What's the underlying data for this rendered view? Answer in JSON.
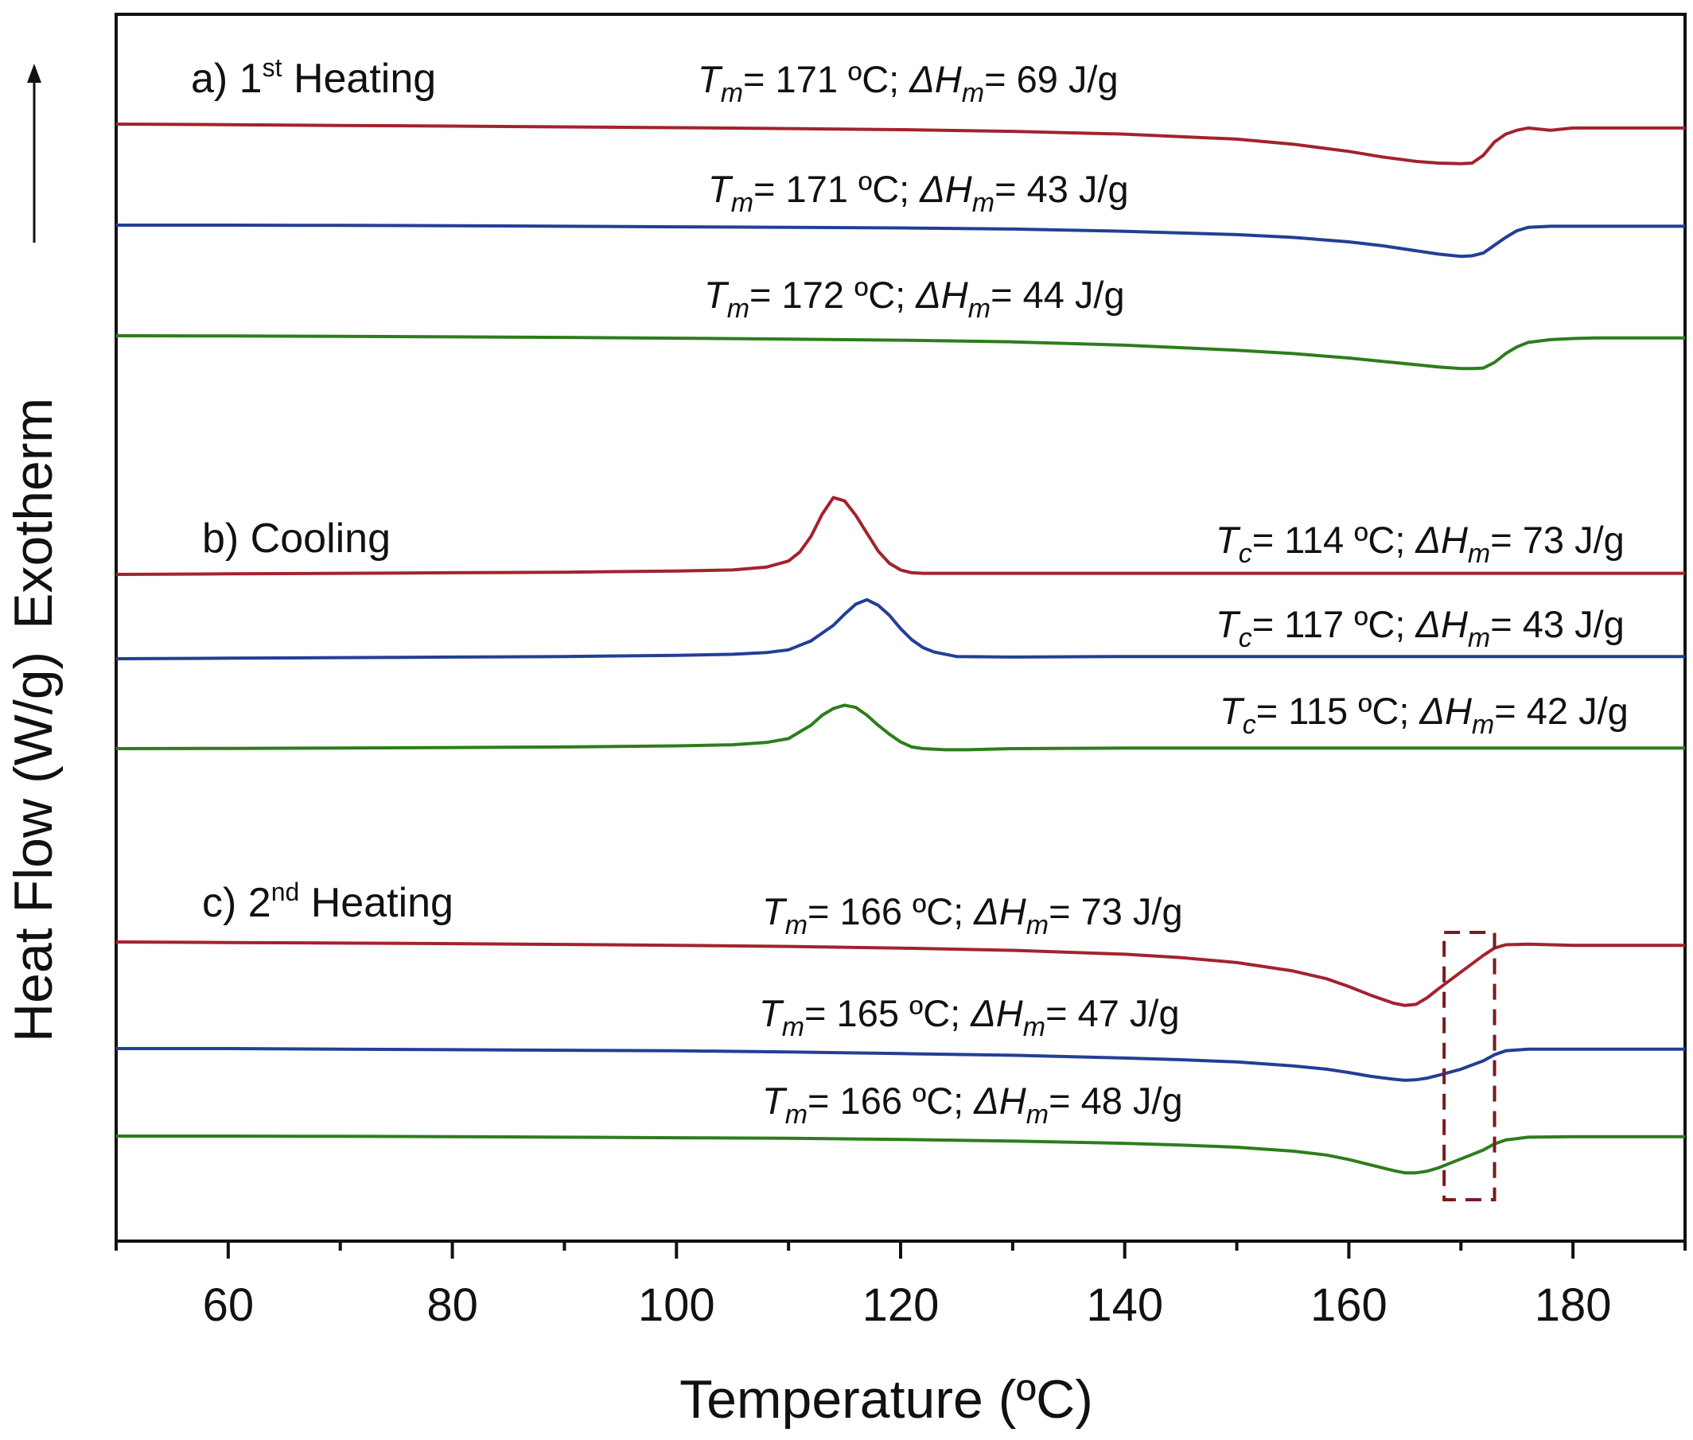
{
  "chart_data": {
    "type": "line",
    "xlabel": "Temperature (ºC)",
    "ylabel": "Heat Flow (W/g)",
    "exotherm_label": "Exotherm",
    "xlim": [
      50,
      190
    ],
    "x_major_ticks": [
      60,
      80,
      100,
      120,
      140,
      160,
      180
    ],
    "x_tick_labels": [
      "60",
      "80",
      "100",
      "120",
      "140",
      "160",
      "180"
    ],
    "x_minor_step": 10,
    "colors": {
      "red": "#a3222e",
      "blue": "#223f95",
      "green": "#2d7d1c"
    },
    "highlight_box": {
      "x_range": [
        168.5,
        173
      ],
      "curves": "c) 2nd Heating"
    },
    "panels": [
      {
        "id": "a",
        "label_prefix": "a) 1",
        "label_sup": "st",
        "label_suffix": " Heating",
        "curves": [
          {
            "color": "red",
            "x": [
              50,
              60,
              70,
              80,
              90,
              100,
              110,
              120,
              130,
              140,
              150,
              155,
              160,
              163,
              166,
              168,
              170,
              171,
              172,
              173,
              174,
              175,
              176,
              178,
              180,
              182,
              184,
              186,
              188,
              190
            ],
            "y": [
              0,
              -0.05,
              -0.12,
              -0.18,
              -0.25,
              -0.32,
              -0.4,
              -0.5,
              -0.65,
              -0.9,
              -1.35,
              -1.8,
              -2.45,
              -2.95,
              -3.35,
              -3.5,
              -3.55,
              -3.5,
              -2.8,
              -1.6,
              -0.9,
              -0.55,
              -0.35,
              -0.55,
              -0.35,
              -0.35,
              -0.35,
              -0.35,
              -0.35,
              -0.35
            ]
          },
          {
            "color": "blue",
            "x": [
              50,
              60,
              70,
              80,
              90,
              100,
              110,
              120,
              130,
              140,
              150,
              155,
              160,
              163,
              166,
              168,
              170,
              171,
              172,
              173,
              174,
              175,
              176,
              178,
              180,
              182,
              184,
              186,
              188,
              190
            ],
            "y": [
              0,
              0,
              -0.02,
              -0.05,
              -0.1,
              -0.15,
              -0.2,
              -0.25,
              -0.35,
              -0.55,
              -0.85,
              -1.1,
              -1.5,
              -1.85,
              -2.3,
              -2.6,
              -2.8,
              -2.75,
              -2.5,
              -1.8,
              -1.1,
              -0.5,
              -0.2,
              -0.1,
              -0.1,
              -0.1,
              -0.1,
              -0.1,
              -0.1,
              -0.1
            ]
          },
          {
            "color": "green",
            "x": [
              50,
              60,
              70,
              80,
              90,
              100,
              110,
              120,
              130,
              140,
              150,
              155,
              160,
              163,
              166,
              168,
              170,
              171,
              172,
              173,
              174,
              175,
              176,
              178,
              180,
              182,
              184,
              186,
              188,
              190
            ],
            "y": [
              0,
              -0.02,
              -0.05,
              -0.1,
              -0.15,
              -0.22,
              -0.3,
              -0.4,
              -0.55,
              -0.85,
              -1.3,
              -1.6,
              -2.0,
              -2.3,
              -2.6,
              -2.8,
              -2.95,
              -2.95,
              -2.9,
              -2.4,
              -1.6,
              -1.0,
              -0.6,
              -0.35,
              -0.25,
              -0.2,
              -0.2,
              -0.2,
              -0.2,
              -0.2
            ]
          }
        ],
        "annotations": [
          {
            "T_symbol": "T",
            "T_sub": "m",
            "T_text": "= 171 ºC; ",
            "H_symbol": "ΔH",
            "H_sub": "m",
            "H_text": "= 69 J/g"
          },
          {
            "T_symbol": "T",
            "T_sub": "m",
            "T_text": "= 171 ºC; ",
            "H_symbol": "ΔH",
            "H_sub": "m",
            "H_text": "= 43 J/g"
          },
          {
            "T_symbol": "T",
            "T_sub": "m",
            "T_text": "= 172 ºC; ",
            "H_symbol": "ΔH",
            "H_sub": "m",
            "H_text": "= 44 J/g"
          }
        ]
      },
      {
        "id": "b",
        "label_prefix": "b) Cooling",
        "label_sup": "",
        "label_suffix": "",
        "curves": [
          {
            "color": "red",
            "x": [
              50,
              60,
              70,
              80,
              90,
              100,
              105,
              108,
              110,
              111,
              112,
              113,
              114,
              115,
              116,
              117,
              118,
              119,
              120,
              121,
              122,
              125,
              130,
              140,
              150,
              160,
              170,
              180,
              190
            ],
            "y": [
              0,
              0.05,
              0.1,
              0.15,
              0.2,
              0.3,
              0.4,
              0.65,
              1.2,
              2.0,
              3.4,
              5.4,
              6.9,
              6.6,
              5.3,
              3.7,
              2.1,
              1.0,
              0.4,
              0.15,
              0.1,
              0.1,
              0.1,
              0.1,
              0.1,
              0.1,
              0.1,
              0.1,
              0.1
            ]
          },
          {
            "color": "blue",
            "x": [
              50,
              60,
              70,
              80,
              90,
              100,
              105,
              108,
              110,
              112,
              114,
              115,
              116,
              117,
              118,
              119,
              120,
              121,
              122,
              123,
              125,
              130,
              140,
              150,
              160,
              170,
              180,
              190
            ],
            "y": [
              0,
              0.05,
              0.1,
              0.15,
              0.2,
              0.3,
              0.4,
              0.55,
              0.8,
              1.6,
              3.0,
              4.0,
              4.9,
              5.3,
              4.8,
              3.9,
              2.7,
              1.7,
              1.0,
              0.6,
              0.2,
              0.15,
              0.2,
              0.2,
              0.2,
              0.2,
              0.2,
              0.2
            ]
          },
          {
            "color": "green",
            "x": [
              50,
              60,
              70,
              80,
              90,
              100,
              105,
              108,
              110,
              112,
              113,
              114,
              115,
              116,
              117,
              118,
              119,
              120,
              121,
              122,
              124,
              126,
              130,
              140,
              150,
              160,
              170,
              180,
              190
            ],
            "y": [
              0,
              0.02,
              0.05,
              0.1,
              0.15,
              0.25,
              0.35,
              0.55,
              0.9,
              2.1,
              3.0,
              3.6,
              3.9,
              3.7,
              3.0,
              2.1,
              1.3,
              0.6,
              0.15,
              0.0,
              -0.1,
              -0.1,
              0.0,
              0.05,
              0.05,
              0.05,
              0.05,
              0.05,
              0.05
            ]
          }
        ],
        "annotations": [
          {
            "T_symbol": "T",
            "T_sub": "c",
            "T_text": "= 114 ºC; ",
            "H_symbol": "ΔH",
            "H_sub": "m",
            "H_text": "= 73 J/g"
          },
          {
            "T_symbol": "T",
            "T_sub": "c",
            "T_text": "= 117 ºC; ",
            "H_symbol": "ΔH",
            "H_sub": "m",
            "H_text": "= 43 J/g"
          },
          {
            "T_symbol": "T",
            "T_sub": "c",
            "T_text": "= 115 ºC; ",
            "H_symbol": "ΔH",
            "H_sub": "m",
            "H_text": "= 42 J/g"
          }
        ]
      },
      {
        "id": "c",
        "label_prefix": "c) 2",
        "label_sup": "nd",
        "label_suffix": " Heating",
        "curves": [
          {
            "color": "red",
            "x": [
              50,
              60,
              70,
              80,
              90,
              100,
              110,
              120,
              130,
              140,
              145,
              150,
              155,
              158,
              160,
              162,
              164,
              165,
              166,
              167,
              168,
              170,
              172,
              173,
              174,
              176,
              180,
              184,
              188,
              190
            ],
            "y": [
              0,
              -0.05,
              -0.1,
              -0.15,
              -0.22,
              -0.3,
              -0.4,
              -0.55,
              -0.75,
              -1.1,
              -1.4,
              -1.85,
              -2.6,
              -3.3,
              -4.0,
              -4.8,
              -5.5,
              -5.7,
              -5.6,
              -5.0,
              -4.2,
              -2.7,
              -1.2,
              -0.55,
              -0.25,
              -0.2,
              -0.3,
              -0.3,
              -0.3,
              -0.3
            ]
          },
          {
            "color": "blue",
            "x": [
              50,
              60,
              70,
              80,
              90,
              100,
              110,
              120,
              130,
              140,
              145,
              150,
              155,
              158,
              160,
              162,
              164,
              165,
              166,
              167,
              168,
              170,
              172,
              173,
              174,
              176,
              180,
              184,
              188,
              190
            ],
            "y": [
              0,
              0,
              -0.05,
              -0.1,
              -0.15,
              -0.2,
              -0.3,
              -0.45,
              -0.6,
              -0.85,
              -1.0,
              -1.2,
              -1.55,
              -1.85,
              -2.15,
              -2.5,
              -2.75,
              -2.85,
              -2.8,
              -2.65,
              -2.4,
              -1.85,
              -1.1,
              -0.55,
              -0.2,
              -0.05,
              -0.05,
              -0.05,
              -0.05,
              -0.05
            ]
          },
          {
            "color": "green",
            "x": [
              50,
              60,
              70,
              80,
              90,
              100,
              110,
              120,
              130,
              140,
              145,
              150,
              155,
              158,
              160,
              162,
              164,
              165,
              166,
              167,
              168,
              170,
              172,
              173,
              174,
              176,
              180,
              184,
              188,
              190
            ],
            "y": [
              0,
              0,
              -0.02,
              -0.05,
              -0.1,
              -0.15,
              -0.2,
              -0.3,
              -0.45,
              -0.65,
              -0.8,
              -1.0,
              -1.35,
              -1.7,
              -2.1,
              -2.6,
              -3.1,
              -3.3,
              -3.3,
              -3.15,
              -2.85,
              -2.05,
              -1.25,
              -0.7,
              -0.35,
              -0.1,
              -0.05,
              -0.05,
              -0.05,
              -0.05
            ]
          }
        ],
        "annotations": [
          {
            "T_symbol": "T",
            "T_sub": "m",
            "T_text": "= 166 ºC; ",
            "H_symbol": "ΔH",
            "H_sub": "m",
            "H_text": "= 73 J/g"
          },
          {
            "T_symbol": "T",
            "T_sub": "m",
            "T_text": "= 165 ºC; ",
            "H_symbol": "ΔH",
            "H_sub": "m",
            "H_text": "= 47 J/g"
          },
          {
            "T_symbol": "T",
            "T_sub": "m",
            "T_text": "= 166 ºC; ",
            "H_symbol": "ΔH",
            "H_sub": "m",
            "H_text": "= 48 J/g"
          }
        ]
      }
    ]
  }
}
